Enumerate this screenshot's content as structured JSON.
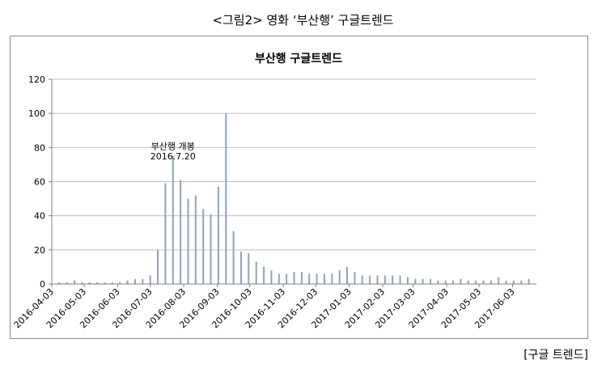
{
  "caption": "<그림2> 영화 ‘부산행’ 구글트렌드",
  "source": "[구글 트렌드]",
  "chart_data": {
    "type": "bar",
    "title": "부산행 구글트렌드",
    "xlabel": "",
    "ylabel": "",
    "ylim": [
      0,
      120
    ],
    "yticks": [
      0,
      20,
      40,
      60,
      80,
      100,
      120
    ],
    "grid": true,
    "legend": "none",
    "bar_color": "#8fa3b8",
    "grid_color": "#bfbfbf",
    "x_tick_labels": [
      "2016-04-03",
      "2016-05-03",
      "2016-06-03",
      "2016-07-03",
      "2016-08-03",
      "2016-09-03",
      "2016-10-03",
      "2016-11-03",
      "2016-12-03",
      "2017-01-03",
      "2017-02-03",
      "2017-03-03",
      "2017-04-03",
      "2017-05-03",
      "2017-06-03"
    ],
    "x": [
      "2016-04-03",
      "2016-04-10",
      "2016-04-17",
      "2016-04-24",
      "2016-05-01",
      "2016-05-08",
      "2016-05-15",
      "2016-05-22",
      "2016-05-29",
      "2016-06-05",
      "2016-06-12",
      "2016-06-19",
      "2016-06-26",
      "2016-07-03",
      "2016-07-10",
      "2016-07-17",
      "2016-07-24",
      "2016-07-31",
      "2016-08-07",
      "2016-08-14",
      "2016-08-21",
      "2016-08-28",
      "2016-09-04",
      "2016-09-11",
      "2016-09-18",
      "2016-09-25",
      "2016-10-02",
      "2016-10-09",
      "2016-10-16",
      "2016-10-23",
      "2016-10-30",
      "2016-11-06",
      "2016-11-13",
      "2016-11-20",
      "2016-11-27",
      "2016-12-04",
      "2016-12-11",
      "2016-12-18",
      "2016-12-25",
      "2017-01-01",
      "2017-01-08",
      "2017-01-15",
      "2017-01-22",
      "2017-01-29",
      "2017-02-05",
      "2017-02-12",
      "2017-02-19",
      "2017-02-26",
      "2017-03-05",
      "2017-03-12",
      "2017-03-19",
      "2017-03-26",
      "2017-04-02",
      "2017-04-09",
      "2017-04-16",
      "2017-04-23",
      "2017-04-30",
      "2017-05-07",
      "2017-05-14",
      "2017-05-21",
      "2017-05-28",
      "2017-06-04",
      "2017-06-11",
      "2017-06-18"
    ],
    "values": [
      0,
      1,
      1,
      2,
      1,
      1,
      1,
      1,
      1,
      1,
      2,
      3,
      3,
      5,
      20,
      59,
      75,
      61,
      50,
      52,
      44,
      41,
      57,
      100,
      31,
      19,
      18,
      13,
      10,
      8,
      6,
      6,
      7,
      7,
      6,
      6,
      6,
      6,
      8,
      10,
      7,
      5,
      5,
      5,
      5,
      5,
      5,
      4,
      3,
      3,
      3,
      2,
      2,
      2,
      3,
      2,
      2,
      2,
      2,
      4,
      2,
      2,
      2,
      3
    ],
    "annotations": [
      {
        "text": "부산행 개봉",
        "x": "2016-07-24",
        "y": 79
      },
      {
        "text": "2016.7.20",
        "x": "2016-07-24",
        "y": 73
      }
    ]
  }
}
